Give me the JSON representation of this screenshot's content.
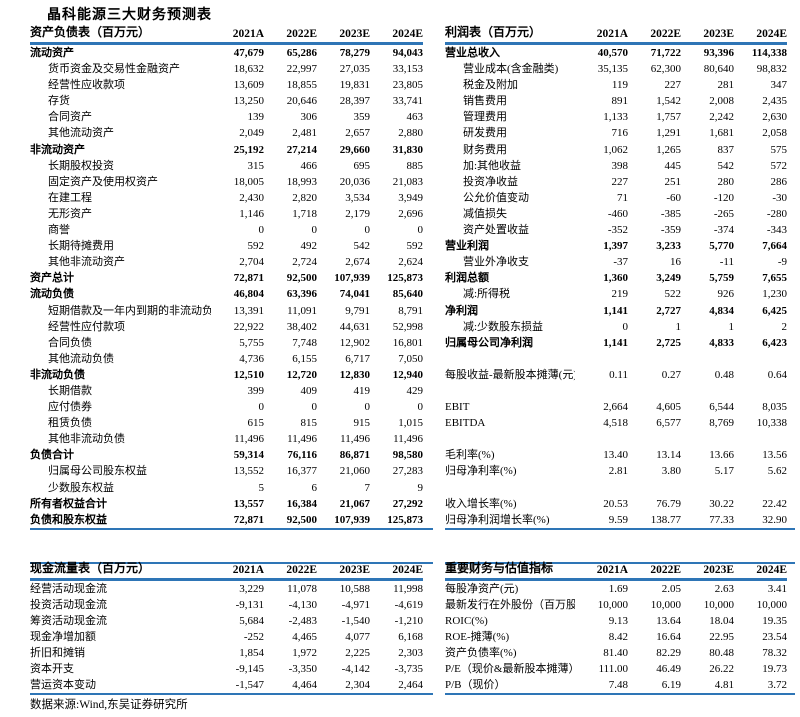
{
  "title": "晶科能源三大财务预测表",
  "source_note": "数据来源:Wind,东吴证券研究所",
  "colors": {
    "accent": "#2E75B6",
    "text": "#000000",
    "background": "#FFFFFF"
  },
  "tables": {
    "balance_sheet": {
      "title": "资产负债表（百万元）",
      "columns": [
        "2021A",
        "2022E",
        "2023E",
        "2024E"
      ],
      "rows": [
        {
          "label": "流动资产",
          "bold": true,
          "values": [
            "47,679",
            "65,286",
            "78,279",
            "94,043"
          ]
        },
        {
          "label": "货币资金及交易性金融资产",
          "indent": true,
          "values": [
            "18,632",
            "22,997",
            "27,035",
            "33,153"
          ]
        },
        {
          "label": "经营性应收款项",
          "indent": true,
          "values": [
            "13,609",
            "18,855",
            "19,831",
            "23,805"
          ]
        },
        {
          "label": "存货",
          "indent": true,
          "values": [
            "13,250",
            "20,646",
            "28,397",
            "33,741"
          ]
        },
        {
          "label": "合同资产",
          "indent": true,
          "values": [
            "139",
            "306",
            "359",
            "463"
          ]
        },
        {
          "label": "其他流动资产",
          "indent": true,
          "values": [
            "2,049",
            "2,481",
            "2,657",
            "2,880"
          ]
        },
        {
          "label": "非流动资产",
          "bold": true,
          "values": [
            "25,192",
            "27,214",
            "29,660",
            "31,830"
          ]
        },
        {
          "label": "长期股权投资",
          "indent": true,
          "values": [
            "315",
            "466",
            "695",
            "885"
          ]
        },
        {
          "label": "固定资产及使用权资产",
          "indent": true,
          "values": [
            "18,005",
            "18,993",
            "20,036",
            "21,083"
          ]
        },
        {
          "label": "在建工程",
          "indent": true,
          "values": [
            "2,430",
            "2,820",
            "3,534",
            "3,949"
          ]
        },
        {
          "label": "无形资产",
          "indent": true,
          "values": [
            "1,146",
            "1,718",
            "2,179",
            "2,696"
          ]
        },
        {
          "label": "商誉",
          "indent": true,
          "values": [
            "0",
            "0",
            "0",
            "0"
          ]
        },
        {
          "label": "长期待摊费用",
          "indent": true,
          "values": [
            "592",
            "492",
            "542",
            "592"
          ]
        },
        {
          "label": "其他非流动资产",
          "indent": true,
          "values": [
            "2,704",
            "2,724",
            "2,674",
            "2,624"
          ]
        },
        {
          "label": "资产总计",
          "bold": true,
          "values": [
            "72,871",
            "92,500",
            "107,939",
            "125,873"
          ]
        },
        {
          "label": "流动负债",
          "bold": true,
          "values": [
            "46,804",
            "63,396",
            "74,041",
            "85,640"
          ]
        },
        {
          "label": "短期借款及一年内到期的非流动负债",
          "indent": true,
          "values": [
            "13,391",
            "11,091",
            "9,791",
            "8,791"
          ]
        },
        {
          "label": "经营性应付款项",
          "indent": true,
          "values": [
            "22,922",
            "38,402",
            "44,631",
            "52,998"
          ]
        },
        {
          "label": "合同负债",
          "indent": true,
          "values": [
            "5,755",
            "7,748",
            "12,902",
            "16,801"
          ]
        },
        {
          "label": "其他流动负债",
          "indent": true,
          "values": [
            "4,736",
            "6,155",
            "6,717",
            "7,050"
          ]
        },
        {
          "label": "非流动负债",
          "bold": true,
          "values": [
            "12,510",
            "12,720",
            "12,830",
            "12,940"
          ]
        },
        {
          "label": "长期借款",
          "indent": true,
          "values": [
            "399",
            "409",
            "419",
            "429"
          ]
        },
        {
          "label": "应付债券",
          "indent": true,
          "values": [
            "0",
            "0",
            "0",
            "0"
          ]
        },
        {
          "label": "租赁负债",
          "indent": true,
          "values": [
            "615",
            "815",
            "915",
            "1,015"
          ]
        },
        {
          "label": "其他非流动负债",
          "indent": true,
          "values": [
            "11,496",
            "11,496",
            "11,496",
            "11,496"
          ]
        },
        {
          "label": "负债合计",
          "bold": true,
          "values": [
            "59,314",
            "76,116",
            "86,871",
            "98,580"
          ]
        },
        {
          "label": "归属母公司股东权益",
          "indent": true,
          "values": [
            "13,552",
            "16,377",
            "21,060",
            "27,283"
          ]
        },
        {
          "label": "少数股东权益",
          "indent": true,
          "values": [
            "5",
            "6",
            "7",
            "9"
          ]
        },
        {
          "label": "所有者权益合计",
          "bold": true,
          "values": [
            "13,557",
            "16,384",
            "21,067",
            "27,292"
          ]
        },
        {
          "label": "负债和股东权益",
          "bold": true,
          "values": [
            "72,871",
            "92,500",
            "107,939",
            "125,873"
          ]
        }
      ]
    },
    "income_statement": {
      "title": "利润表（百万元）",
      "columns": [
        "2021A",
        "2022E",
        "2023E",
        "2024E"
      ],
      "rows": [
        {
          "label": "营业总收入",
          "bold": true,
          "values": [
            "40,570",
            "71,722",
            "93,396",
            "114,338"
          ]
        },
        {
          "label": "营业成本(含金融类)",
          "indent": true,
          "values": [
            "35,135",
            "62,300",
            "80,640",
            "98,832"
          ]
        },
        {
          "label": "税金及附加",
          "indent": true,
          "values": [
            "119",
            "227",
            "281",
            "347"
          ]
        },
        {
          "label": "销售费用",
          "indent": true,
          "values": [
            "891",
            "1,542",
            "2,008",
            "2,435"
          ]
        },
        {
          "label": "管理费用",
          "indent": true,
          "values": [
            "1,133",
            "1,757",
            "2,242",
            "2,630"
          ]
        },
        {
          "label": "研发费用",
          "indent": true,
          "values": [
            "716",
            "1,291",
            "1,681",
            "2,058"
          ]
        },
        {
          "label": "财务费用",
          "indent": true,
          "values": [
            "1,062",
            "1,265",
            "837",
            "575"
          ]
        },
        {
          "label": "加:其他收益",
          "indent": true,
          "values": [
            "398",
            "445",
            "542",
            "572"
          ]
        },
        {
          "label": "投资净收益",
          "indent": true,
          "values": [
            "227",
            "251",
            "280",
            "286"
          ]
        },
        {
          "label": "公允价值变动",
          "indent": true,
          "values": [
            "71",
            "-60",
            "-120",
            "-30"
          ]
        },
        {
          "label": "减值损失",
          "indent": true,
          "values": [
            "-460",
            "-385",
            "-265",
            "-280"
          ]
        },
        {
          "label": "资产处置收益",
          "indent": true,
          "values": [
            "-352",
            "-359",
            "-374",
            "-343"
          ]
        },
        {
          "label": "营业利润",
          "bold": true,
          "values": [
            "1,397",
            "3,233",
            "5,770",
            "7,664"
          ]
        },
        {
          "label": "营业外净收支",
          "indent": true,
          "values": [
            "-37",
            "16",
            "-11",
            "-9"
          ]
        },
        {
          "label": "利润总额",
          "bold": true,
          "values": [
            "1,360",
            "3,249",
            "5,759",
            "7,655"
          ]
        },
        {
          "label": "减:所得税",
          "indent": true,
          "values": [
            "219",
            "522",
            "926",
            "1,230"
          ]
        },
        {
          "label": "净利润",
          "bold": true,
          "values": [
            "1,141",
            "2,727",
            "4,834",
            "6,425"
          ]
        },
        {
          "label": "减:少数股东损益",
          "indent": true,
          "values": [
            "0",
            "1",
            "1",
            "2"
          ]
        },
        {
          "label": "归属母公司净利润",
          "bold": true,
          "values": [
            "1,141",
            "2,725",
            "4,833",
            "6,423"
          ]
        },
        {
          "blank": true
        },
        {
          "label": "每股收益-最新股本摊薄(元)",
          "values": [
            "0.11",
            "0.27",
            "0.48",
            "0.64"
          ]
        },
        {
          "blank": true
        },
        {
          "label": "EBIT",
          "values": [
            "2,664",
            "4,605",
            "6,544",
            "8,035"
          ]
        },
        {
          "label": "EBITDA",
          "values": [
            "4,518",
            "6,577",
            "8,769",
            "10,338"
          ]
        },
        {
          "blank": true
        },
        {
          "label": "毛利率(%)",
          "values": [
            "13.40",
            "13.14",
            "13.66",
            "13.56"
          ]
        },
        {
          "label": "归母净利率(%)",
          "values": [
            "2.81",
            "3.80",
            "5.17",
            "5.62"
          ]
        },
        {
          "blank": true
        },
        {
          "label": "收入增长率(%)",
          "values": [
            "20.53",
            "76.79",
            "30.22",
            "22.42"
          ]
        },
        {
          "label": "归母净利润增长率(%)",
          "values": [
            "9.59",
            "138.77",
            "77.33",
            "32.90"
          ]
        }
      ]
    },
    "cash_flow": {
      "title": "现金流量表（百万元）",
      "columns": [
        "2021A",
        "2022E",
        "2023E",
        "2024E"
      ],
      "rows": [
        {
          "label": "经营活动现金流",
          "values": [
            "3,229",
            "11,078",
            "10,588",
            "11,998"
          ]
        },
        {
          "label": "投资活动现金流",
          "values": [
            "-9,131",
            "-4,130",
            "-4,971",
            "-4,619"
          ]
        },
        {
          "label": "筹资活动现金流",
          "values": [
            "5,684",
            "-2,483",
            "-1,540",
            "-1,210"
          ]
        },
        {
          "label": "现金净增加额",
          "values": [
            "-252",
            "4,465",
            "4,077",
            "6,168"
          ]
        },
        {
          "label": "折旧和摊销",
          "values": [
            "1,854",
            "1,972",
            "2,225",
            "2,303"
          ]
        },
        {
          "label": "资本开支",
          "values": [
            "-9,145",
            "-3,350",
            "-4,142",
            "-3,735"
          ]
        },
        {
          "label": "营运资本变动",
          "values": [
            "-1,547",
            "4,464",
            "2,304",
            "2,464"
          ]
        }
      ]
    },
    "metrics": {
      "title": "重要财务与估值指标",
      "columns": [
        "2021A",
        "2022E",
        "2023E",
        "2024E"
      ],
      "rows": [
        {
          "label": "每股净资产(元)",
          "values": [
            "1.69",
            "2.05",
            "2.63",
            "3.41"
          ]
        },
        {
          "label": "最新发行在外股份（百万股）",
          "values": [
            "10,000",
            "10,000",
            "10,000",
            "10,000"
          ]
        },
        {
          "label": "ROIC(%)",
          "values": [
            "9.13",
            "13.64",
            "18.04",
            "19.35"
          ]
        },
        {
          "label": "ROE-摊薄(%)",
          "values": [
            "8.42",
            "16.64",
            "22.95",
            "23.54"
          ]
        },
        {
          "label": "资产负债率(%)",
          "values": [
            "81.40",
            "82.29",
            "80.48",
            "78.32"
          ]
        },
        {
          "label": "P/E（现价&最新股本摊薄）",
          "values": [
            "111.00",
            "46.49",
            "26.22",
            "19.73"
          ]
        },
        {
          "label": "P/B（现价）",
          "values": [
            "7.48",
            "6.19",
            "4.81",
            "3.72"
          ]
        }
      ]
    }
  }
}
